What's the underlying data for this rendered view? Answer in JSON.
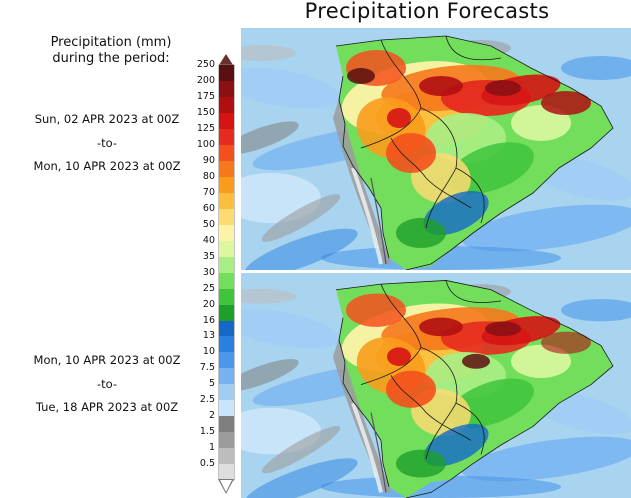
{
  "title": "Precipitation Forecasts",
  "legend": {
    "title_line1": "Precipitation (mm)",
    "title_line2": "during the period:",
    "levels": [
      "250",
      "200",
      "175",
      "150",
      "125",
      "100",
      "90",
      "80",
      "70",
      "60",
      "50",
      "40",
      "35",
      "30",
      "25",
      "20",
      "16",
      "13",
      "10",
      "7.5",
      "5",
      "2.5",
      "2",
      "1.5",
      "1",
      "0.5"
    ],
    "colors": [
      "#5a0f10",
      "#8c0f14",
      "#b00f12",
      "#d51414",
      "#e52b1f",
      "#f4501d",
      "#f6781b",
      "#f99c1c",
      "#fbbf3d",
      "#fcdb72",
      "#fcf3a6",
      "#dcf7a0",
      "#a8ee85",
      "#72de5c",
      "#3fc43c",
      "#1e9f2a",
      "#1469c8",
      "#2a80e0",
      "#4b97ea",
      "#74b2f1",
      "#a1cdf5",
      "#cae5fa",
      "#7f7f7f",
      "#9c9c9c",
      "#bdbdbd",
      "#dedede"
    ]
  },
  "periods": [
    {
      "start": "Sun, 02 APR 2023 at 00Z",
      "sep": "-to-",
      "end": "Mon, 10 APR 2023 at 00Z"
    },
    {
      "start": "Mon, 10 APR 2023 at 00Z",
      "sep": "-to-",
      "end": "Tue, 18 APR 2023 at 00Z"
    }
  ],
  "maps": [
    {
      "region": "South America",
      "period_index": 0
    },
    {
      "region": "South America",
      "period_index": 1
    }
  ]
}
